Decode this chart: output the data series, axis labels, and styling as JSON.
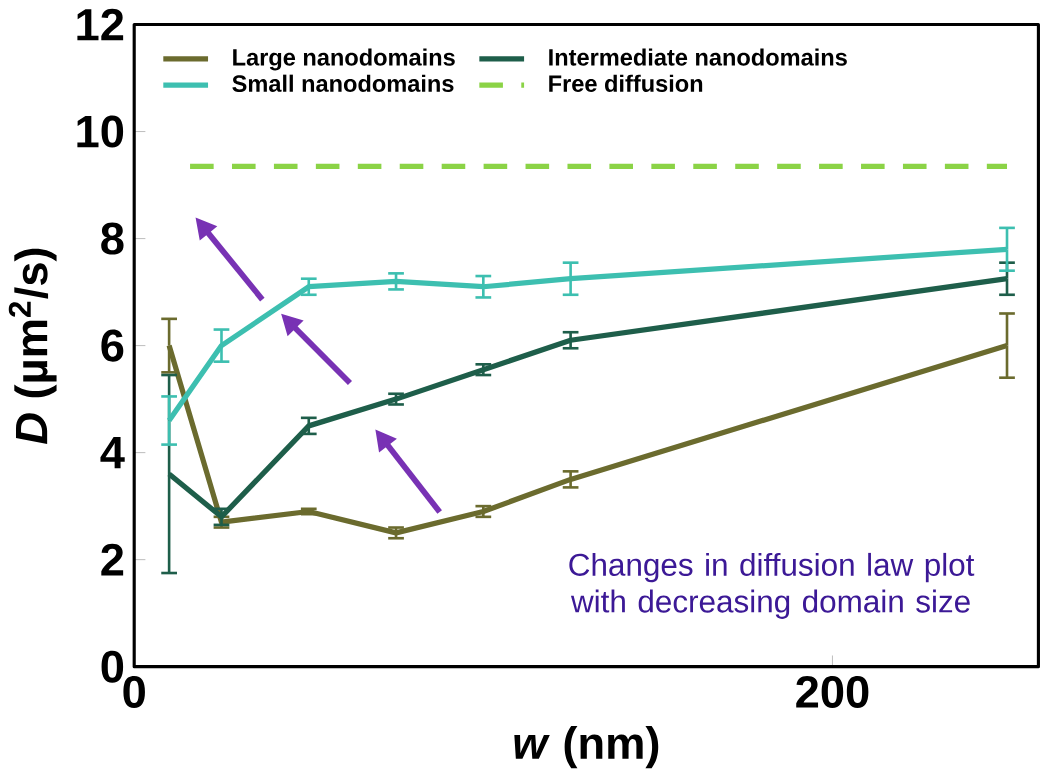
{
  "chart_data": {
    "type": "line",
    "xlabel": "*w* (nm)",
    "ylabel": "*D* (µm$^{2}$/s)",
    "x": [
      10,
      25,
      50,
      75,
      100,
      125,
      250
    ],
    "series": [
      {
        "name": "Large nanodomains",
        "color": "#6b6b2e",
        "values": [
          6.0,
          2.7,
          2.9,
          2.5,
          2.9,
          3.5,
          6.0
        ],
        "errors": [
          0.5,
          0.1,
          0.05,
          0.1,
          0.1,
          0.15,
          0.6
        ]
      },
      {
        "name": "Intermediate nanodomains",
        "color": "#1e5e4a",
        "values": [
          3.6,
          2.8,
          4.5,
          5.0,
          5.55,
          6.1,
          7.25
        ],
        "errors": [
          1.85,
          0.15,
          0.15,
          0.1,
          0.1,
          0.15,
          0.3
        ]
      },
      {
        "name": "Small nanodomains",
        "color": "#3dbfb0",
        "values": [
          4.6,
          6.0,
          7.1,
          7.2,
          7.1,
          7.25,
          7.8
        ],
        "errors": [
          0.45,
          0.3,
          0.15,
          0.15,
          0.2,
          0.3,
          0.4
        ]
      },
      {
        "name": "Free diffusion",
        "color": "#8bd346",
        "x": [
          16,
          250
        ],
        "values": [
          9.35,
          9.35
        ],
        "line_style": "dashed"
      }
    ],
    "xlim": [
      0,
      259
    ],
    "ylim": [
      0,
      12
    ],
    "xticks": [
      0,
      200
    ],
    "yticks": [
      0,
      2,
      4,
      6,
      8,
      10,
      12
    ],
    "legend": "top left",
    "marker": "none",
    "annotations": [
      "Changes in diffusion law plot with decreasing domain size"
    ]
  }
}
